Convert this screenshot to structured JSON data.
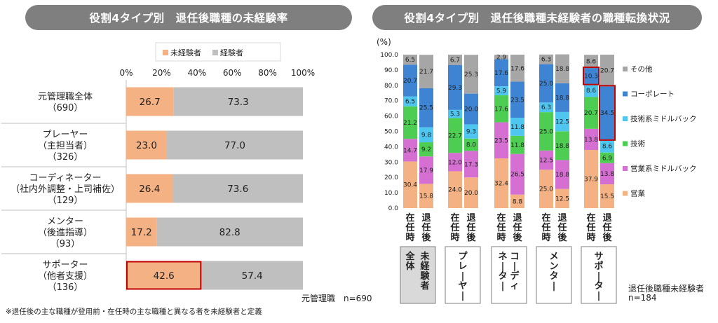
{
  "left_panel": {
    "title": "役割4タイプ別　退任後職種の未経験率",
    "sample_note": "元管理職　n=690",
    "footnote": "※退任後の主な職種が登用前・在任時の主な職種と異なる者を未経験者と定義"
  },
  "right_panel": {
    "title": "役割4タイプ別　退任後職種未経験者の職種転換状況",
    "sample_note_1": "退任後職種未経験者",
    "sample_note_2": "n=184"
  },
  "chart_data": [
    {
      "type": "bar",
      "orientation": "horizontal",
      "stacked": true,
      "legend_position": "top",
      "xlim": [
        0,
        100
      ],
      "x_ticks": [
        "0%",
        "20%",
        "40%",
        "60%",
        "80%",
        "100%"
      ],
      "categories": [
        [
          "元管理職全体",
          "（690）"
        ],
        [
          "プレーヤー",
          "（主担当者）",
          "（326）"
        ],
        [
          "コーディネーター",
          "（社内外調整・上司補佐）",
          "（129）"
        ],
        [
          "メンター",
          "（後進指導）",
          "（93）"
        ],
        [
          "サポーター",
          "（他者支援）",
          "（136）"
        ]
      ],
      "series": [
        {
          "name": "未経験者",
          "color": "#f4b183",
          "values": [
            26.7,
            23.0,
            26.4,
            17.2,
            42.6
          ]
        },
        {
          "name": "経験者",
          "color": "#bfbfbf",
          "values": [
            73.3,
            77.0,
            73.6,
            82.8,
            57.4
          ]
        }
      ],
      "value_labels": [
        [
          "26.7",
          "23.0",
          "26.4",
          "17.2",
          "42.6"
        ],
        [
          "73.3",
          "77.0",
          "73.6",
          "82.8",
          "57.4"
        ]
      ],
      "highlight_color": "#c00000",
      "highlights": [
        {
          "category_index": 4,
          "series_index": 0
        }
      ]
    },
    {
      "type": "bar",
      "orientation": "vertical",
      "stacked": true,
      "ylabel": "(%)",
      "ylim": [
        0,
        100
      ],
      "y_ticks": [
        "0.0",
        "10.0",
        "20.0",
        "30.0",
        "40.0",
        "50.0",
        "60.0",
        "70.0",
        "80.0",
        "90.0",
        "100.0"
      ],
      "legend_position": "right",
      "bar_labels": [
        "在任時",
        "退任後"
      ],
      "groups": [
        {
          "label": "全体",
          "sublabel": "未経験者",
          "shaded": true
        },
        {
          "label": "プレーヤー"
        },
        {
          "label": "コーディネーター"
        },
        {
          "label": "メンター"
        },
        {
          "label": "サポーター"
        }
      ],
      "series": [
        {
          "name": "営業",
          "color": "#f4b183",
          "values": [
            [
              30.4,
              15.8
            ],
            [
              24.0,
              20.0
            ],
            [
              32.4,
              8.8
            ],
            [
              25.0,
              12.5
            ],
            [
              37.9,
              15.5
            ]
          ],
          "labels": [
            [
              "30.4",
              "15.8"
            ],
            [
              "24.0",
              "20.0"
            ],
            [
              "32.4",
              "8.8"
            ],
            [
              "25.0",
              "12.5"
            ],
            [
              "37.9",
              "15.5"
            ]
          ]
        },
        {
          "name": "営業系ミドルバック",
          "color": "#d56fd1",
          "values": [
            [
              14.7,
              17.9
            ],
            [
              12.0,
              17.3
            ],
            [
              23.5,
              26.5
            ],
            [
              12.5,
              18.8
            ],
            [
              13.8,
              13.8
            ]
          ],
          "labels": [
            [
              "14.7",
              "17.9"
            ],
            [
              "12.0",
              "17.3"
            ],
            [
              "23.5",
              "26.5"
            ],
            [
              "12.5",
              "18.8"
            ],
            [
              "13.8",
              "13.8"
            ]
          ]
        },
        {
          "name": "技術",
          "color": "#4dce53",
          "values": [
            [
              21.2,
              9.2
            ],
            [
              22.7,
              8.0
            ],
            [
              17.6,
              11.8
            ],
            [
              25.0,
              18.8
            ],
            [
              20.7,
              6.9
            ]
          ],
          "labels": [
            [
              "21.2",
              "9.2"
            ],
            [
              "22.7",
              "8.0"
            ],
            [
              "17.6",
              "11.8"
            ],
            [
              "25.0",
              "18.8"
            ],
            [
              "20.7",
              "6.9"
            ]
          ]
        },
        {
          "name": "技術系ミドルバック",
          "color": "#4fc6ef",
          "values": [
            [
              6.5,
              9.8
            ],
            [
              5.3,
              9.3
            ],
            [
              5.9,
              11.8
            ],
            [
              6.3,
              12.5
            ],
            [
              8.6,
              8.6
            ]
          ],
          "labels": [
            [
              "6.5",
              "9.8"
            ],
            [
              "5.3",
              "9.3"
            ],
            [
              "5.9",
              "11.8"
            ],
            [
              "6.3",
              "12.5"
            ],
            [
              "8.6",
              "8.6"
            ]
          ]
        },
        {
          "name": "コーポレート",
          "color": "#3f84d2",
          "values": [
            [
              20.7,
              25.5
            ],
            [
              29.3,
              20.0
            ],
            [
              17.6,
              23.5
            ],
            [
              25.0,
              18.8
            ],
            [
              10.3,
              34.5
            ]
          ],
          "labels": [
            [
              "20.7",
              "25.5"
            ],
            [
              "29.3",
              "20.0"
            ],
            [
              "17.6",
              "23.5"
            ],
            [
              "25.0",
              "18.8"
            ],
            [
              "10.3",
              "34.5"
            ]
          ]
        },
        {
          "name": "その他",
          "color": "#a6a6a6",
          "values": [
            [
              6.5,
              21.7
            ],
            [
              6.7,
              25.3
            ],
            [
              2.9,
              17.6
            ],
            [
              6.3,
              18.8
            ],
            [
              8.6,
              20.7
            ]
          ],
          "labels": [
            [
              "6.5",
              "21.7"
            ],
            [
              "6.7",
              "25.3"
            ],
            [
              "2.9",
              "17.6"
            ],
            [
              "6.3",
              "18.8"
            ],
            [
              "8.6",
              "20.7"
            ]
          ]
        }
      ],
      "highlight_color": "#c00000",
      "highlights": [
        {
          "group_index": 4,
          "bar_index": 0,
          "series_index": 4
        },
        {
          "group_index": 4,
          "bar_index": 1,
          "series_index": 4
        }
      ]
    }
  ]
}
